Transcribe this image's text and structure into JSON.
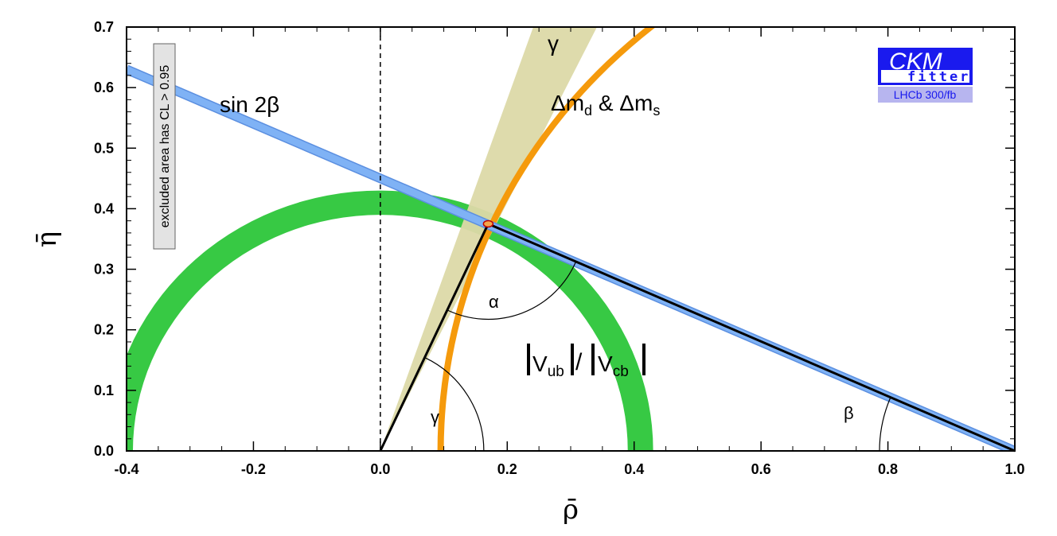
{
  "chart_data": {
    "type": "scatter",
    "title": "",
    "xlabel": "ρ̄",
    "ylabel": "η̄",
    "xlim": [
      -0.4,
      1.0
    ],
    "ylim": [
      0.0,
      0.7
    ],
    "x_ticks": [
      "-0.4",
      "-0.2",
      "0.0",
      "0.2",
      "0.4",
      "0.6",
      "0.8",
      "1.0"
    ],
    "y_ticks": [
      "0.0",
      "0.1",
      "0.2",
      "0.3",
      "0.4",
      "0.5",
      "0.6",
      "0.7"
    ],
    "grid": false,
    "apex": {
      "rho": 0.17,
      "eta": 0.375
    },
    "constraints": [
      {
        "name": "sin 2β",
        "color": "#7fb2f5",
        "kind": "line",
        "from": [
          -0.4,
          0.63
        ],
        "to": [
          1.0,
          0.0
        ]
      },
      {
        "name": "γ",
        "color": "#dcd9a8",
        "kind": "band",
        "angle_range_deg": [
          64,
          71
        ]
      },
      {
        "name": "Δm_d & Δm_s",
        "color": "#f59a0c",
        "kind": "circle",
        "center": [
          1.0,
          0.0
        ],
        "radius_range": [
          0.9,
          0.91
        ]
      },
      {
        "name": "|V_ub|/|V_cb|",
        "color": "#37c944",
        "kind": "circle",
        "center": [
          0.0,
          0.0
        ],
        "radius_range": [
          0.39,
          0.43
        ]
      }
    ],
    "angle_labels": {
      "alpha": "α",
      "beta": "β",
      "gamma": "γ"
    },
    "labels": {
      "sin2beta": "sin 2β",
      "gamma": "γ",
      "dm_main": "Δm",
      "dm_sub_d": "d",
      "dm_amp": " & Δm",
      "dm_sub_s": "s",
      "vub_V1": "V",
      "vub_sub1": "ub",
      "vub_V2": "V",
      "vub_sub2": "cb"
    },
    "excluded_note": "excluded area has CL > 0.95",
    "logo": {
      "main": "CKM",
      "sub": "fitter",
      "caption": "LHCb 300/fb"
    }
  }
}
